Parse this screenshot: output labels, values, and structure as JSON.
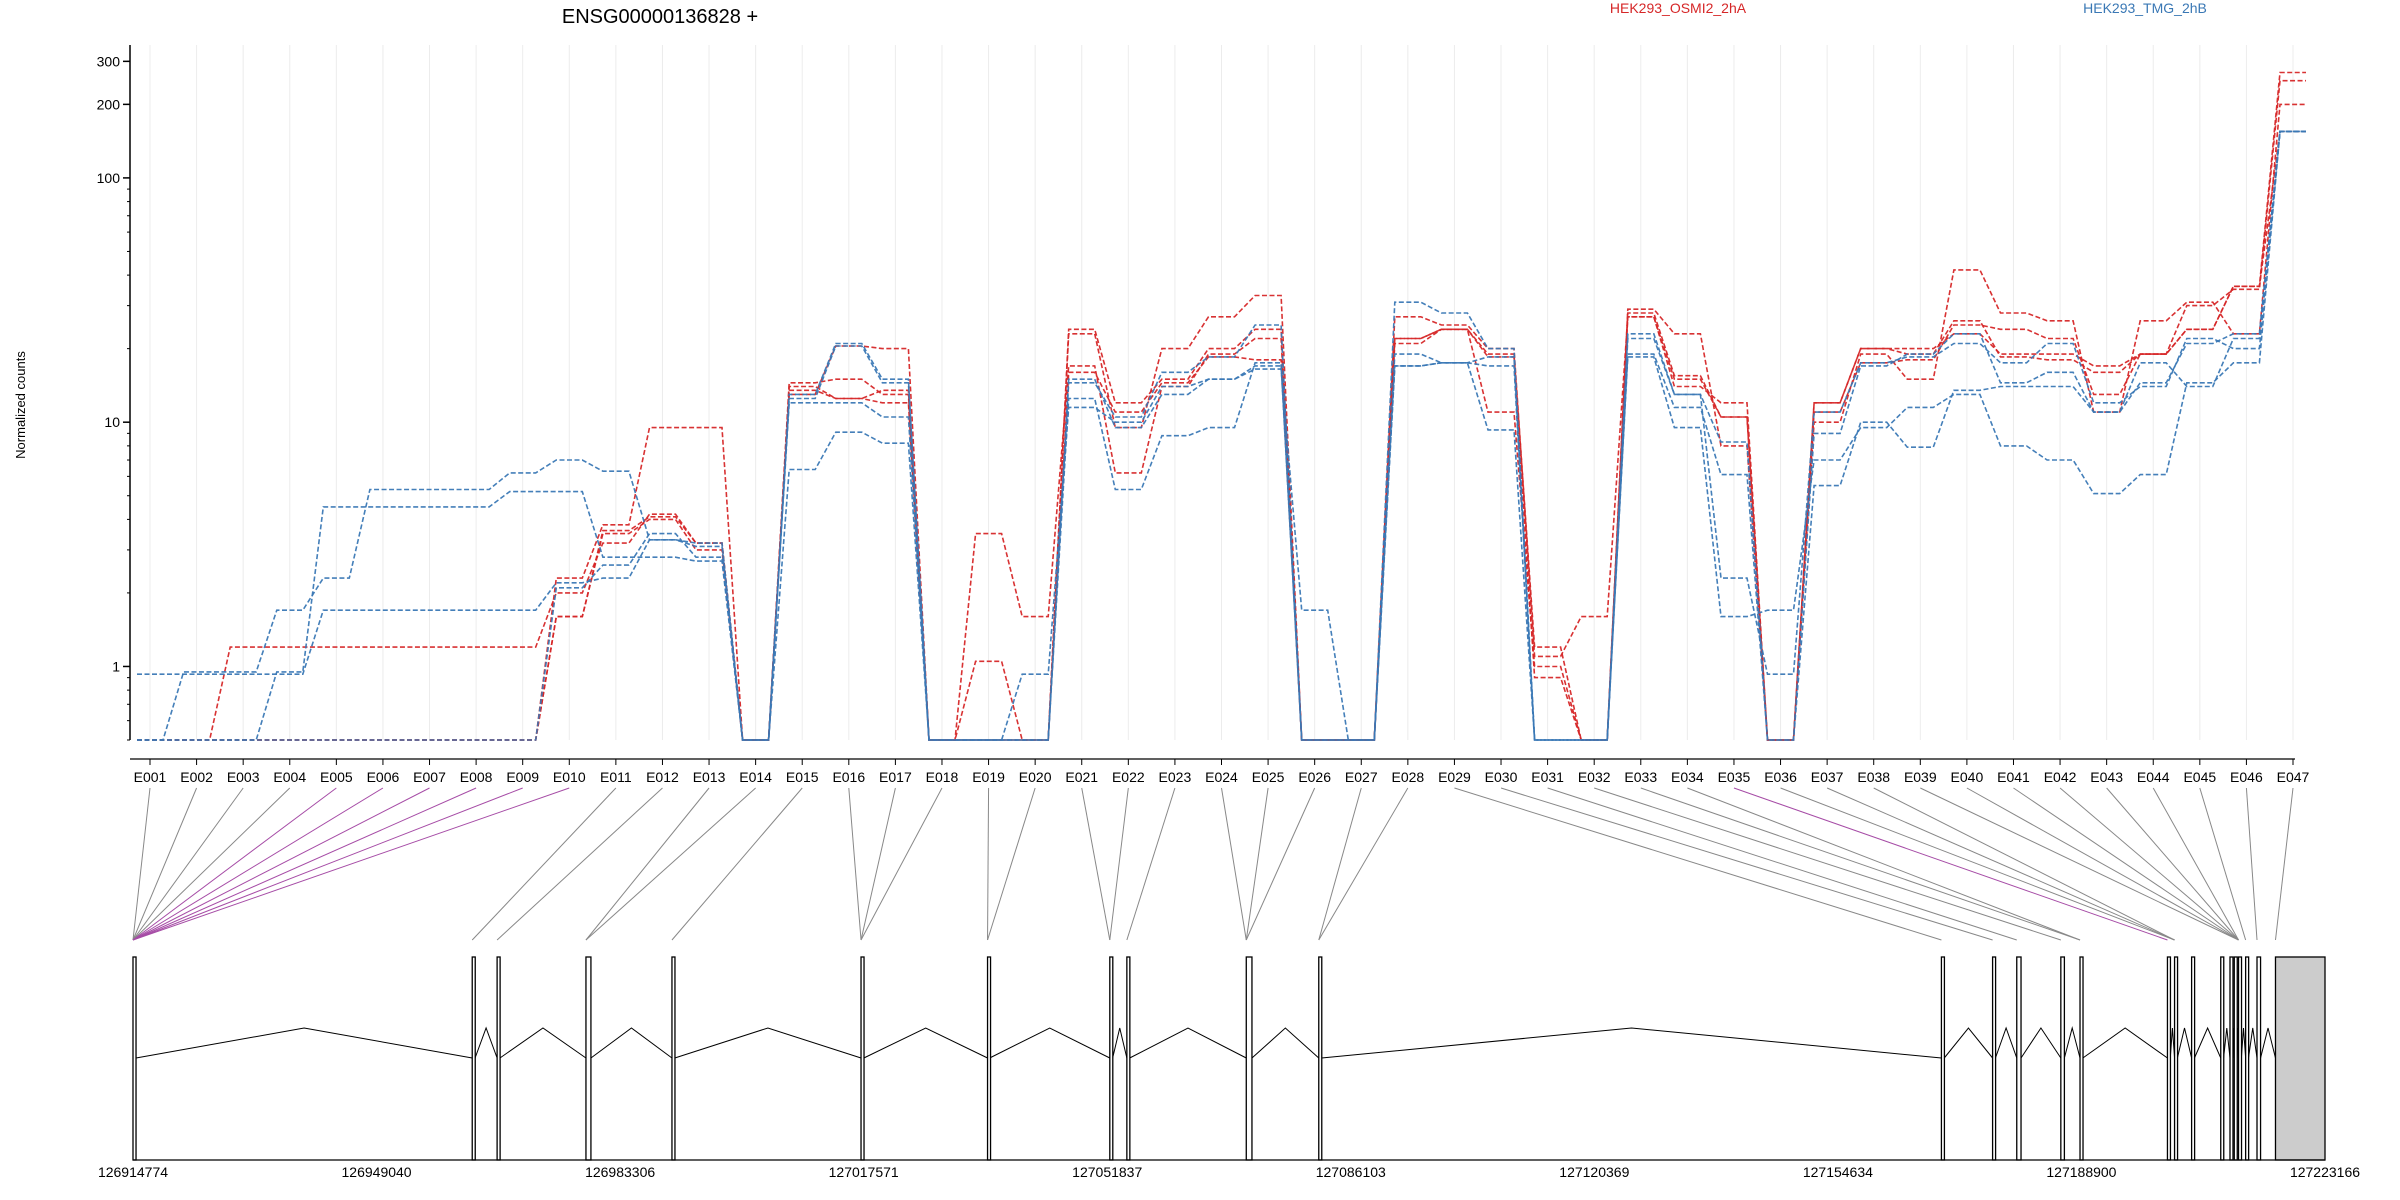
{
  "chart_data": {
    "type": "line",
    "title": "ENSG00000136828 +",
    "xlabel": "",
    "ylabel": "Normalized counts",
    "y_scale": "log",
    "ylim": [
      0.5,
      350
    ],
    "y_ticks": [
      1,
      10,
      100,
      200,
      300
    ],
    "grid": true,
    "legend": [
      {
        "name": "HEK293_OSMI2_2hA",
        "color": "#d62728"
      },
      {
        "name": "HEK293_TMG_2hB",
        "color": "#3a78b5"
      }
    ],
    "categories": [
      "E001",
      "E002",
      "E003",
      "E004",
      "E005",
      "E006",
      "E007",
      "E008",
      "E009",
      "E010",
      "E011",
      "E012",
      "E013",
      "E014",
      "E015",
      "E016",
      "E017",
      "E018",
      "E019",
      "E020",
      "E021",
      "E022",
      "E023",
      "E024",
      "E025",
      "E026",
      "E027",
      "E028",
      "E029",
      "E030",
      "E031",
      "E032",
      "E033",
      "E034",
      "E035",
      "E036",
      "E037",
      "E038",
      "E039",
      "E040",
      "E041",
      "E042",
      "E043",
      "E044",
      "E045",
      "E046",
      "E047"
    ],
    "series": [
      {
        "group": "HEK293_OSMI2_2hA",
        "color": "#d62728",
        "values": [
          0.5,
          0.5,
          0.5,
          0.5,
          0.5,
          0.5,
          0.5,
          0.5,
          0.5,
          1.6,
          3.6,
          4.1,
          3.2,
          0.5,
          14.5,
          15,
          13,
          0.5,
          0.5,
          0.5,
          24,
          12,
          15,
          20,
          24,
          0.5,
          0.5,
          22,
          24,
          19,
          1.2,
          0.5,
          28,
          15.5,
          10.5,
          0.5,
          12,
          20,
          20,
          23,
          19,
          19,
          17,
          19,
          24,
          36,
          270
        ]
      },
      {
        "group": "HEK293_OSMI2_2hA",
        "color": "#d62728",
        "values": [
          0.5,
          0.5,
          1.2,
          1.2,
          1.2,
          1.2,
          1.2,
          1.2,
          1.2,
          2.0,
          3.2,
          4.2,
          3.2,
          0.5,
          14.0,
          12.5,
          12.0,
          0.5,
          3.5,
          1.6,
          17,
          6.2,
          14,
          19,
          22,
          0.5,
          0.5,
          27,
          25,
          20,
          1.1,
          1.6,
          27,
          14,
          12,
          0.5,
          11,
          17.5,
          18,
          25,
          24,
          22,
          13,
          19,
          30,
          35,
          250
        ]
      },
      {
        "group": "HEK293_OSMI2_2hA",
        "color": "#d62728",
        "values": [
          0.5,
          0.5,
          0.5,
          0.5,
          0.5,
          0.5,
          0.5,
          0.5,
          0.5,
          2.3,
          3.8,
          9.5,
          9.5,
          0.5,
          13.0,
          20.5,
          20.0,
          0.5,
          1.05,
          0.5,
          23,
          9.5,
          20,
          27,
          33,
          0.5,
          0.5,
          21,
          24,
          11,
          1.0,
          0.5,
          29,
          23,
          8,
          0.5,
          10,
          19,
          15,
          42,
          28,
          26,
          11,
          26,
          31,
          23,
          200
        ]
      },
      {
        "group": "HEK293_OSMI2_2hA",
        "color": "#d62728",
        "values": [
          0.5,
          0.5,
          0.5,
          0.5,
          0.5,
          0.5,
          0.5,
          0.5,
          0.5,
          1.6,
          3.5,
          4.0,
          3.0,
          0.5,
          13.5,
          12.5,
          13.5,
          0.5,
          0.5,
          0.5,
          16,
          11,
          14.5,
          18.5,
          18,
          0.5,
          0.5,
          22,
          24,
          18.5,
          0.9,
          0.5,
          27,
          15,
          10.5,
          0.5,
          12,
          20,
          19,
          26,
          18.5,
          18,
          16,
          19,
          24,
          36,
          155
        ]
      },
      {
        "group": "HEK293_TMG_2hB",
        "color": "#3a78b5",
        "values": [
          0.93,
          0.93,
          0.93,
          0.93,
          1.7,
          1.7,
          1.7,
          1.7,
          1.7,
          2.2,
          2.3,
          3.3,
          3.2,
          0.5,
          13.0,
          21.0,
          15.0,
          0.5,
          0.5,
          0.5,
          14.5,
          10.5,
          16,
          18.5,
          25,
          0.5,
          0.5,
          31,
          28,
          20,
          0.5,
          0.5,
          23,
          13,
          2.3,
          0.93,
          11,
          17.5,
          18.5,
          21,
          17.5,
          21,
          12,
          14,
          22,
          20,
          155
        ]
      },
      {
        "group": "HEK293_TMG_2hB",
        "color": "#3a78b5",
        "values": [
          0.5,
          0.95,
          0.95,
          1.7,
          2.3,
          5.3,
          5.3,
          5.3,
          6.2,
          7.0,
          6.3,
          3.3,
          3.1,
          0.5,
          12.5,
          20.5,
          14.5,
          0.5,
          0.5,
          0.93,
          11.5,
          10,
          14,
          15,
          16.5,
          1.7,
          0.5,
          17,
          17.5,
          9.3,
          0.5,
          0.5,
          18.5,
          9.5,
          1.6,
          1.7,
          7.0,
          9.5,
          11.5,
          13,
          8.0,
          7.0,
          5.1,
          6.1,
          14.5,
          17.5,
          155
        ]
      },
      {
        "group": "HEK293_TMG_2hB",
        "color": "#3a78b5",
        "values": [
          0.5,
          0.5,
          0.5,
          0.95,
          4.5,
          4.5,
          4.5,
          4.5,
          5.2,
          5.2,
          2.8,
          2.8,
          2.7,
          0.5,
          6.4,
          9.1,
          8.2,
          0.5,
          0.5,
          0.5,
          12.5,
          5.3,
          8.8,
          9.5,
          17.5,
          0.5,
          0.5,
          19,
          17.5,
          18.5,
          0.5,
          0.5,
          19,
          11.5,
          6.1,
          0.5,
          5.5,
          10,
          7.9,
          13.5,
          14,
          14,
          11,
          17.5,
          14,
          22,
          155
        ]
      },
      {
        "group": "HEK293_TMG_2hB",
        "color": "#3a78b5",
        "values": [
          0.5,
          0.5,
          0.5,
          0.5,
          0.5,
          0.5,
          0.5,
          0.5,
          0.5,
          2.1,
          2.6,
          3.5,
          2.8,
          0.5,
          12.0,
          12.0,
          10.5,
          0.5,
          0.5,
          0.5,
          15,
          9.5,
          13,
          15,
          17,
          0.5,
          0.5,
          17,
          17.5,
          17,
          0.5,
          0.5,
          22,
          13,
          8.3,
          0.5,
          9.0,
          17,
          19,
          23,
          14.5,
          16,
          11,
          14.5,
          21,
          23,
          155
        ]
      }
    ],
    "gene_model": {
      "coordinate_range": [
        126914774,
        127223166
      ],
      "coordinate_labels": [
        "126914774",
        "126949040",
        "126983306",
        "127017571",
        "127051837",
        "127086103",
        "127120369",
        "127154634",
        "127188900",
        "127223166"
      ],
      "purple_links": [
        "E005",
        "E006",
        "E007",
        "E008",
        "E009",
        "E010",
        "E035"
      ],
      "exon_starts": [
        126914774,
        126962500,
        126966000,
        126978500,
        126990600,
        127017200,
        127035000,
        127052200,
        127054600,
        127071400,
        127081600,
        127169200,
        127176400,
        127179800,
        127186000,
        127188700,
        127201000,
        127202000,
        127204400,
        127208500,
        127209800,
        127210400,
        127211000,
        127212000,
        127213600,
        127216200
      ],
      "exon_ends": [
        126915200,
        126962900,
        126966400,
        126979200,
        126991000,
        127017600,
        127035300,
        127052600,
        127055000,
        127072200,
        127082000,
        127169600,
        127176800,
        127180400,
        127186500,
        127189100,
        127201400,
        127202400,
        127204800,
        127208900,
        127210200,
        127210800,
        127211400,
        127212400,
        127214100,
        127223166
      ]
    }
  }
}
